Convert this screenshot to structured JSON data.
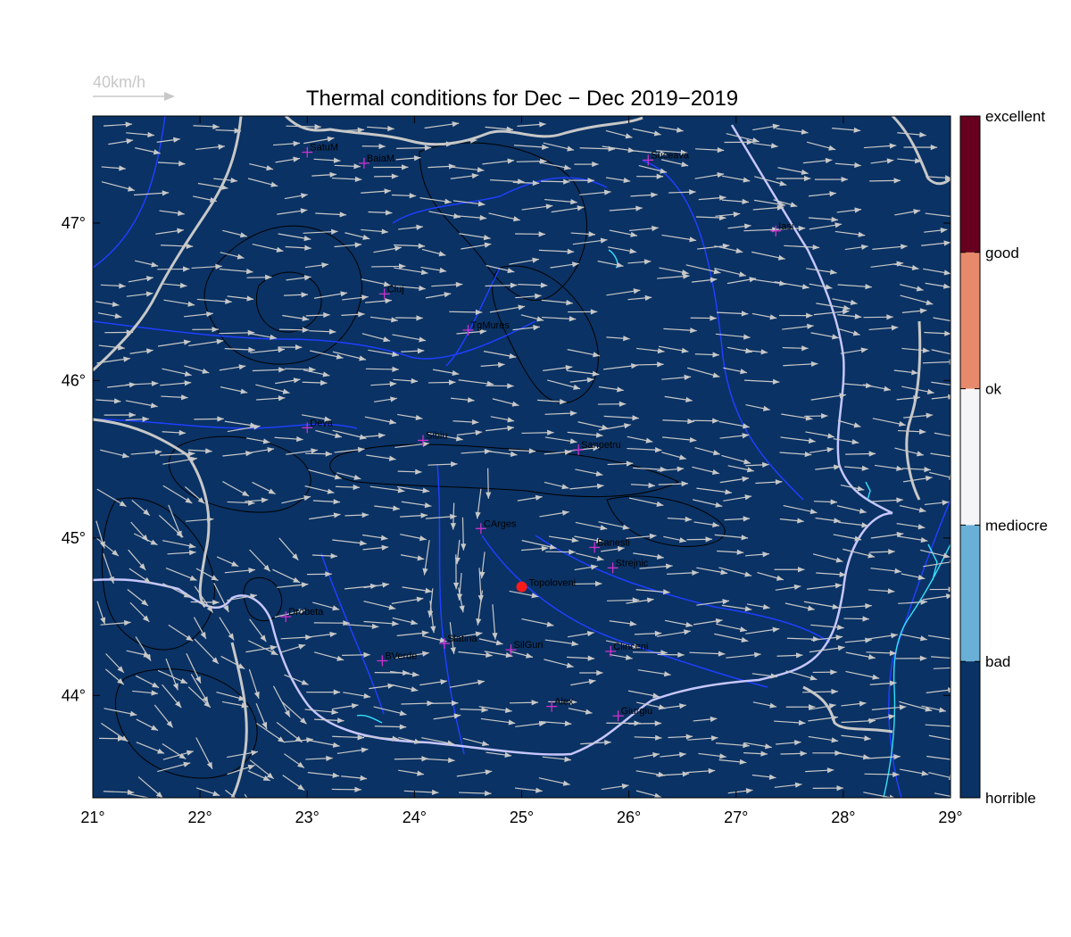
{
  "title": "Thermal conditions for Dec − Dec  2019−2019",
  "wind_scale": {
    "label": "40km/h",
    "speed_kmh": 40
  },
  "map": {
    "lon_range": [
      21,
      29
    ],
    "lat_range": [
      43.35,
      47.68
    ],
    "lon_ticks": [
      "21°",
      "22°",
      "23°",
      "24°",
      "25°",
      "26°",
      "27°",
      "28°",
      "29°"
    ],
    "lat_ticks": [
      "44°",
      "45°",
      "46°",
      "47°"
    ],
    "background_color": "#0a3264",
    "cities": [
      {
        "name": "SatuM",
        "lon": 23.0,
        "lat": 47.45
      },
      {
        "name": "BaiaM",
        "lon": 23.53,
        "lat": 47.38
      },
      {
        "name": "Suceava",
        "lon": 26.18,
        "lat": 47.4
      },
      {
        "name": "Iasi",
        "lon": 27.37,
        "lat": 46.95
      },
      {
        "name": "Cluj",
        "lon": 23.72,
        "lat": 46.55
      },
      {
        "name": "TgMures",
        "lon": 24.5,
        "lat": 46.32
      },
      {
        "name": "Deva",
        "lon": 23.0,
        "lat": 45.7
      },
      {
        "name": "Sibiu",
        "lon": 24.08,
        "lat": 45.62
      },
      {
        "name": "Sanpetru",
        "lon": 25.53,
        "lat": 45.56
      },
      {
        "name": "CArges",
        "lon": 24.62,
        "lat": 45.06
      },
      {
        "name": "Banesti",
        "lon": 25.68,
        "lat": 44.94
      },
      {
        "name": "Strejnic",
        "lon": 25.85,
        "lat": 44.81
      },
      {
        "name": "Drobeta",
        "lon": 22.8,
        "lat": 44.5
      },
      {
        "name": "Slatina",
        "lon": 24.28,
        "lat": 44.33
      },
      {
        "name": "SilGuri",
        "lon": 24.9,
        "lat": 44.29
      },
      {
        "name": "Clinceni",
        "lon": 25.83,
        "lat": 44.28
      },
      {
        "name": "BVerde",
        "lon": 23.7,
        "lat": 44.22
      },
      {
        "name": "Alex",
        "lon": 25.28,
        "lat": 43.93
      },
      {
        "name": "Giurgiu",
        "lon": 25.9,
        "lat": 43.87
      }
    ],
    "highlight": {
      "name": "Topoloveni",
      "lon": 25.0,
      "lat": 44.69,
      "color": "#ff1a1a"
    }
  },
  "legend": {
    "levels": [
      {
        "label": "excellent",
        "color": "#67001f"
      },
      {
        "label": "good",
        "color": "#e78a6b"
      },
      {
        "label": "ok",
        "color": "#f5f5f7"
      },
      {
        "label": "mediocre",
        "color": "#6ab0d6"
      },
      {
        "label": "bad",
        "color": "#0a3264"
      },
      {
        "label": "horrible",
        "color": "#0a3264"
      }
    ]
  },
  "colors": {
    "arrow": "#c8c8c8",
    "border": "#c8c8c8",
    "river": "#1f3fff",
    "danube": "#c7c7ff",
    "lake": "#33e0ff",
    "contour": "#000000",
    "city_marker": "#cc33cc"
  }
}
